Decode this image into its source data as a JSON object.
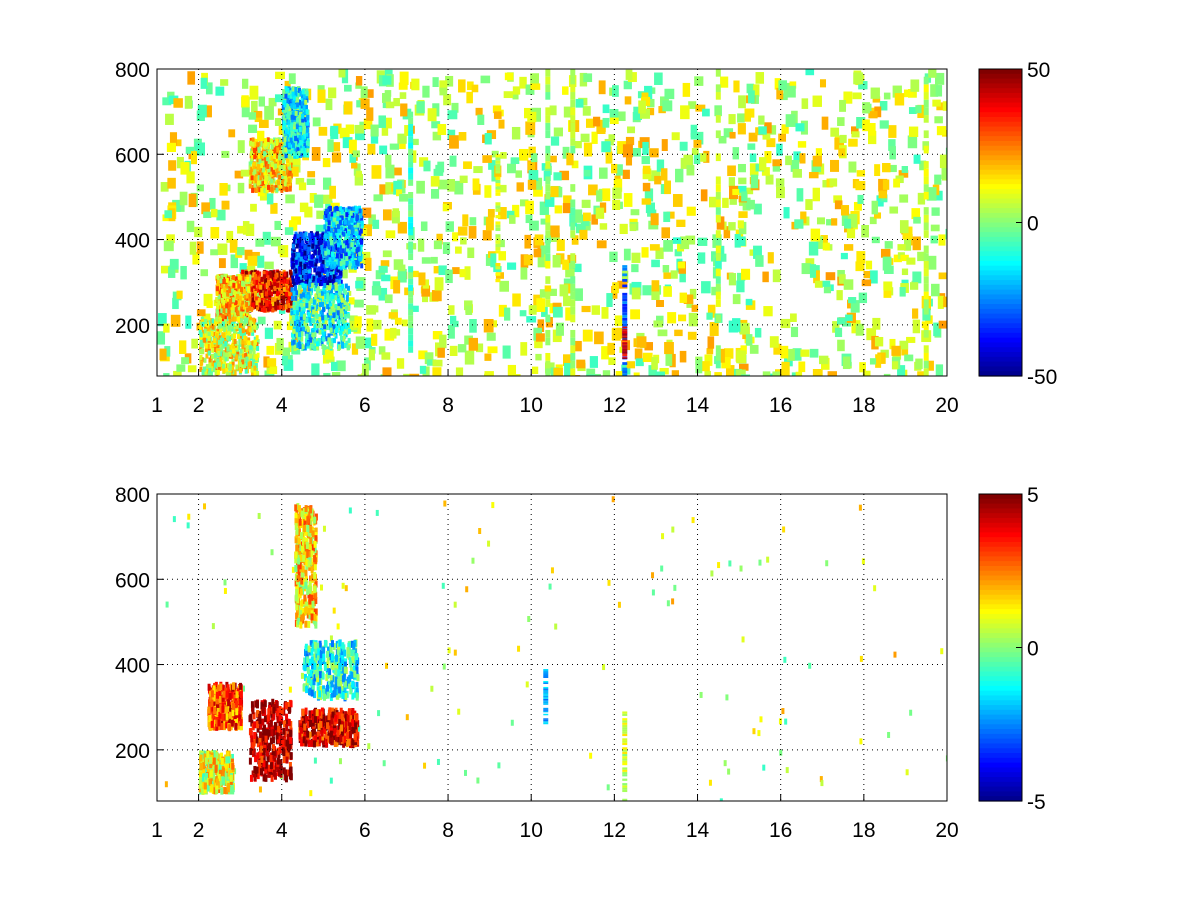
{
  "chart_data": [
    {
      "type": "heatmap",
      "title": "",
      "xlabel": "",
      "ylabel": "",
      "xlim": [
        1,
        20
      ],
      "ylim": [
        80,
        800
      ],
      "x_ticks": [
        1,
        2,
        4,
        6,
        8,
        10,
        12,
        14,
        16,
        18,
        20
      ],
      "y_ticks": [
        200,
        400,
        600,
        800
      ],
      "grid": true,
      "grid_style": "dotted",
      "colormap": "jet",
      "colorbar": {
        "min": -50,
        "max": 50,
        "ticks": [
          50,
          0,
          -50
        ]
      },
      "regions": [
        {
          "x": [
            3.0,
            4.2
          ],
          "y": [
            240,
            330
          ],
          "value": 35
        },
        {
          "x": [
            2.4,
            3.2
          ],
          "y": [
            220,
            320
          ],
          "value": 18
        },
        {
          "x": [
            4.2,
            5.4
          ],
          "y": [
            300,
            420
          ],
          "value": -35
        },
        {
          "x": [
            5.0,
            5.9
          ],
          "y": [
            340,
            480
          ],
          "value": -18
        },
        {
          "x": [
            3.2,
            4.2
          ],
          "y": [
            520,
            640
          ],
          "value": 15
        },
        {
          "x": [
            4.0,
            4.6
          ],
          "y": [
            600,
            760
          ],
          "value": -12
        },
        {
          "x": [
            2.0,
            3.4
          ],
          "y": [
            90,
            220
          ],
          "value": 10
        },
        {
          "x": [
            4.2,
            5.6
          ],
          "y": [
            150,
            300
          ],
          "value": -10
        }
      ],
      "streaks": [
        {
          "x": 10.4,
          "y": [
            80,
            800
          ],
          "value": 5
        },
        {
          "x": 11.0,
          "y": [
            80,
            800
          ],
          "value": 3
        },
        {
          "x": 12.25,
          "y": [
            80,
            340
          ],
          "value": -30
        },
        {
          "x": 12.25,
          "y": [
            120,
            200
          ],
          "value": 40
        },
        {
          "x": 9.2,
          "y": [
            300,
            600
          ],
          "value": 8
        },
        {
          "x": 7.1,
          "y": [
            120,
            700
          ],
          "value": -6
        },
        {
          "x": 14.5,
          "y": [
            80,
            800
          ],
          "value": 4
        },
        {
          "x": 19.5,
          "y": [
            80,
            800
          ],
          "value": 6
        }
      ]
    },
    {
      "type": "heatmap",
      "title": "",
      "xlabel": "",
      "ylabel": "",
      "xlim": [
        1,
        20
      ],
      "ylim": [
        80,
        800
      ],
      "x_ticks": [
        1,
        2,
        4,
        6,
        8,
        10,
        12,
        14,
        16,
        18,
        20
      ],
      "y_ticks": [
        200,
        400,
        600,
        800
      ],
      "grid": true,
      "grid_style": "dotted",
      "colormap": "jet",
      "colorbar": {
        "min": -5,
        "max": 5,
        "ticks": [
          5,
          0,
          -5
        ]
      },
      "regions": [
        {
          "x": [
            3.2,
            4.2
          ],
          "y": [
            140,
            320
          ],
          "value": 4.5
        },
        {
          "x": [
            4.4,
            5.8
          ],
          "y": [
            220,
            300
          ],
          "value": 4
        },
        {
          "x": [
            2.2,
            3.0
          ],
          "y": [
            260,
            360
          ],
          "value": 3
        },
        {
          "x": [
            4.5,
            5.8
          ],
          "y": [
            330,
            460
          ],
          "value": -1
        },
        {
          "x": [
            2.0,
            2.8
          ],
          "y": [
            110,
            200
          ],
          "value": 1
        },
        {
          "x": [
            4.3,
            4.8
          ],
          "y": [
            500,
            780
          ],
          "value": 1.5
        }
      ],
      "streaks": [
        {
          "x": 10.35,
          "y": [
            260,
            400
          ],
          "value": -2
        },
        {
          "x": 12.25,
          "y": [
            80,
            290
          ],
          "value": 0.8
        }
      ]
    }
  ]
}
